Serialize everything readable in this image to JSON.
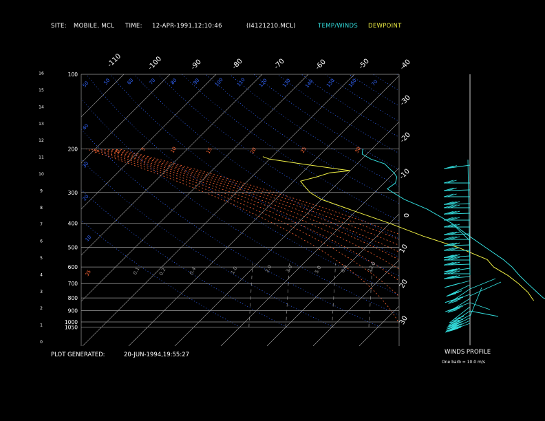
{
  "header": {
    "site_label": "SITE:",
    "site_value": "MOBILE, MCL",
    "time_label": "TIME:",
    "time_value": "12-APR-1991,12:10:46",
    "file_id": "(I4121210.MCL)",
    "legend_temp": "TEMP/WINDS",
    "legend_dew": "DEWPOINT"
  },
  "footer": {
    "generated_label": "PLOT GENERATED:",
    "generated_value": "20-JUN-1994,19:55:27",
    "winds_title": "WINDS PROFILE",
    "winds_note": "One barb = 10.0 m/s"
  },
  "colors": {
    "temp": "#33dddd",
    "dewpoint": "#eeee44",
    "isobar": "#9a9a9a",
    "isotherm": "#b0b0b0",
    "dry_adiabat": "#3366ff",
    "moist_adiabat": "#ff6633",
    "mixing_ratio": "#9a9a9a",
    "winds": "#33dddd"
  },
  "chart_data": {
    "type": "line",
    "diagram": "skew-T log-P",
    "y_axis_pressure": [
      "100",
      "200",
      "300",
      "400",
      "500",
      "600",
      "700",
      "800",
      "900",
      "1000",
      "1050"
    ],
    "y_axis_height_km": [
      "0",
      "1",
      "2",
      "3",
      "4",
      "5",
      "6",
      "7",
      "8",
      "9",
      "10",
      "11",
      "12",
      "13",
      "14",
      "15",
      "16"
    ],
    "isotherm_labels": [
      "-110",
      "-100",
      "-90",
      "-80",
      "-70",
      "-60",
      "-50",
      "-40",
      "-30",
      "-20",
      "-10",
      "0",
      "10",
      "20",
      "30"
    ],
    "dry_adiabat_labels": [
      "50",
      "50",
      "60",
      "70",
      "80",
      "90",
      "100",
      "110",
      "120",
      "130",
      "140",
      "150",
      "160",
      "70",
      "40",
      "30",
      "20",
      "10"
    ],
    "moist_adiabat_labels": [
      "-5",
      "0",
      "5",
      "10",
      "15",
      "20",
      "25",
      "30",
      "35"
    ],
    "mixing_ratio_labels": [
      "0.1",
      "0.2",
      "0.4",
      "1.0",
      "2.0",
      "3.0",
      "5.0",
      "8.0",
      "12.0"
    ],
    "series": [
      {
        "name": "TEMP/WINDS",
        "points": [
          {
            "p": 820,
            "t": 22.0
          },
          {
            "p": 800,
            "t": 19.5
          },
          {
            "p": 760,
            "t": 17.0
          },
          {
            "p": 700,
            "t": 13.0
          },
          {
            "p": 650,
            "t": 9.5
          },
          {
            "p": 600,
            "t": 6.0
          },
          {
            "p": 560,
            "t": 2.5
          },
          {
            "p": 500,
            "t": -4.0
          },
          {
            "p": 450,
            "t": -10.0
          },
          {
            "p": 400,
            "t": -16.5
          },
          {
            "p": 350,
            "t": -25.0
          },
          {
            "p": 320,
            "t": -32.0
          },
          {
            "p": 300,
            "t": -36.0
          },
          {
            "p": 290,
            "t": -38.0
          },
          {
            "p": 275,
            "t": -37.5
          },
          {
            "p": 260,
            "t": -38.5
          },
          {
            "p": 250,
            "t": -40.0
          },
          {
            "p": 240,
            "t": -42.0
          },
          {
            "p": 230,
            "t": -44.0
          },
          {
            "p": 220,
            "t": -48.0
          },
          {
            "p": 210,
            "t": -51.0
          },
          {
            "p": 200,
            "t": -52.0
          }
        ]
      },
      {
        "name": "DEWPOINT",
        "points": [
          {
            "p": 820,
            "t": 18.0
          },
          {
            "p": 800,
            "t": 17.0
          },
          {
            "p": 760,
            "t": 15.0
          },
          {
            "p": 700,
            "t": 11.0
          },
          {
            "p": 650,
            "t": 7.0
          },
          {
            "p": 600,
            "t": 2.0
          },
          {
            "p": 560,
            "t": -1.0
          },
          {
            "p": 500,
            "t": -10.0
          },
          {
            "p": 450,
            "t": -20.0
          },
          {
            "p": 400,
            "t": -30.0
          },
          {
            "p": 350,
            "t": -42.0
          },
          {
            "p": 320,
            "t": -50.0
          },
          {
            "p": 300,
            "t": -54.0
          },
          {
            "p": 280,
            "t": -57.0
          },
          {
            "p": 270,
            "t": -58.5
          },
          {
            "p": 260,
            "t": -56.0
          },
          {
            "p": 250,
            "t": -54.0
          },
          {
            "p": 245,
            "t": -50.0
          },
          {
            "p": 240,
            "t": -54.0
          },
          {
            "p": 230,
            "t": -62.0
          },
          {
            "p": 220,
            "t": -70.0
          },
          {
            "p": 215,
            "t": -72.0
          }
        ]
      }
    ],
    "winds_profile": {
      "name": "WINDS PROFILE",
      "barb_unit_ms": 10.0
    }
  }
}
